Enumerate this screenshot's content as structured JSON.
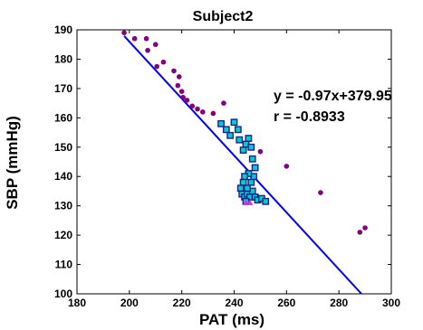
{
  "chart_data": {
    "type": "scatter",
    "title": "Subject2",
    "xlabel": "PAT (ms)",
    "ylabel": "SBP (mmHg)",
    "xlim": [
      180,
      300
    ],
    "ylim": [
      100,
      190
    ],
    "xticks": [
      "180",
      "200",
      "220",
      "240",
      "260",
      "280",
      "300"
    ],
    "yticks": [
      "100",
      "110",
      "120",
      "130",
      "140",
      "150",
      "160",
      "170",
      "180",
      "190"
    ],
    "grid": false,
    "annotation": [
      "y = -0.97x+379.95",
      "r = -0.8933"
    ],
    "fit_line": {
      "slope": -0.97,
      "intercept": 379.95,
      "x_range": [
        198,
        290
      ],
      "color": "#0000ee"
    },
    "series": [
      {
        "marker": "circle",
        "color": "#800080",
        "points": [
          [
            198,
            189
          ],
          [
            202,
            187
          ],
          [
            206.5,
            187
          ],
          [
            210,
            185
          ],
          [
            207,
            183
          ],
          [
            210.5,
            177.5
          ],
          [
            213,
            179
          ],
          [
            217,
            176
          ],
          [
            219,
            174
          ],
          [
            218.5,
            171
          ],
          [
            220,
            169
          ],
          [
            220.5,
            167
          ],
          [
            222,
            166
          ],
          [
            224,
            164
          ],
          [
            226,
            163
          ],
          [
            228,
            162
          ],
          [
            232,
            161.5
          ],
          [
            236,
            165
          ],
          [
            250,
            148.5
          ],
          [
            260,
            143.5
          ],
          [
            273,
            134.5
          ],
          [
            288,
            121
          ],
          [
            290,
            122.5
          ]
        ]
      },
      {
        "marker": "square",
        "color": "#00cccc",
        "edge": "#1f1f8f",
        "points": [
          [
            235,
            158
          ],
          [
            237,
            156
          ],
          [
            238.5,
            154
          ],
          [
            240,
            158.5
          ],
          [
            241.5,
            156
          ],
          [
            242,
            152.5
          ],
          [
            243.5,
            149
          ],
          [
            244.5,
            151
          ],
          [
            245.5,
            153
          ],
          [
            246.5,
            150
          ],
          [
            247,
            146
          ],
          [
            248,
            143
          ],
          [
            247.5,
            140
          ],
          [
            245.5,
            141
          ],
          [
            244,
            140
          ],
          [
            243.5,
            138
          ],
          [
            242.5,
            136
          ],
          [
            243,
            134
          ],
          [
            244,
            133
          ],
          [
            245,
            134
          ],
          [
            246,
            133
          ],
          [
            247,
            135
          ],
          [
            248,
            133
          ],
          [
            249,
            132
          ],
          [
            250.5,
            132.5
          ],
          [
            252,
            131.5
          ],
          [
            246.5,
            138
          ],
          [
            245,
            136
          ],
          [
            244.5,
            131.5
          ]
        ]
      },
      {
        "marker": "triangle",
        "color": "#cc33cc",
        "points": [
          [
            244.5,
            131
          ],
          [
            246,
            131
          ]
        ]
      }
    ]
  }
}
